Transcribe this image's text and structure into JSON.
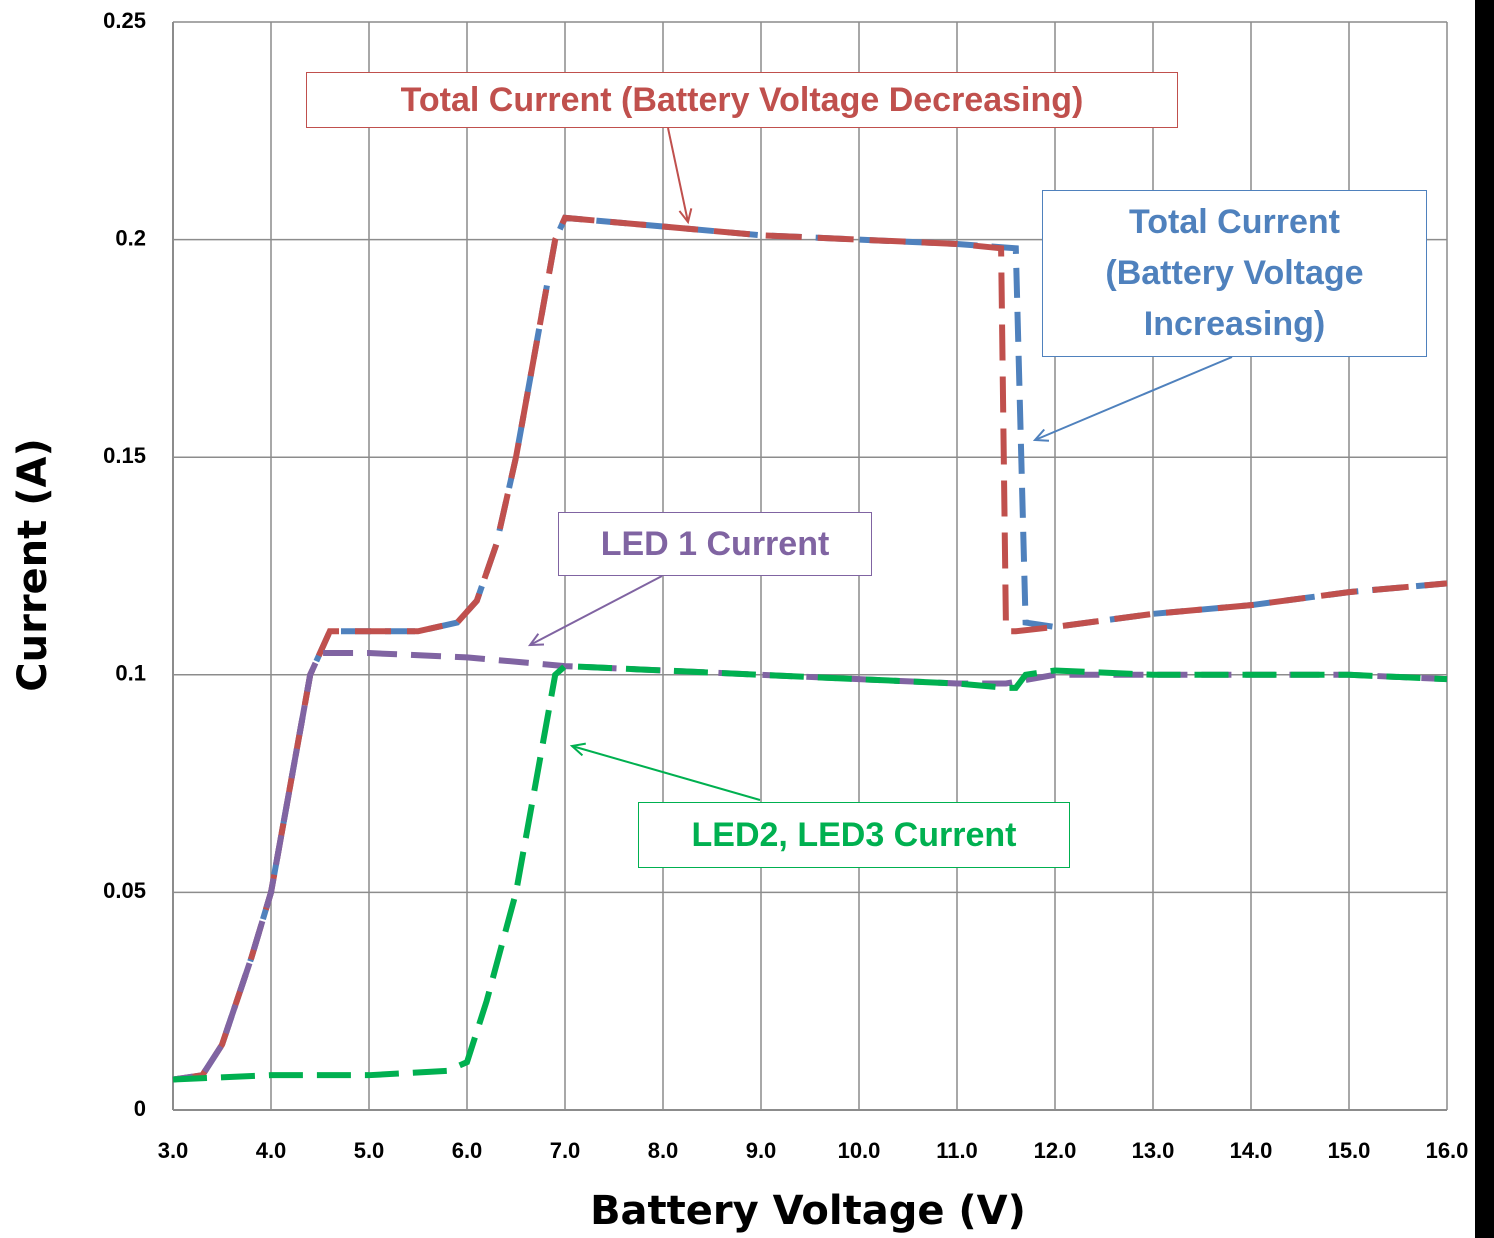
{
  "chart_data": {
    "type": "line",
    "xlabel": "Battery Voltage (V)",
    "ylabel": "Current (A)",
    "xlim": [
      3,
      16
    ],
    "ylim": [
      0,
      0.25
    ],
    "xticks": [
      {
        "value": 3,
        "label": "3.0"
      },
      {
        "value": 4,
        "label": "4.0"
      },
      {
        "value": 5,
        "label": "5.0"
      },
      {
        "value": 6,
        "label": "6.0"
      },
      {
        "value": 7,
        "label": "7.0"
      },
      {
        "value": 8,
        "label": "8.0"
      },
      {
        "value": 9,
        "label": "9.0"
      },
      {
        "value": 10,
        "label": "10.0"
      },
      {
        "value": 11,
        "label": "11.0"
      },
      {
        "value": 12,
        "label": "12.0"
      },
      {
        "value": 13,
        "label": "13.0"
      },
      {
        "value": 14,
        "label": "14.0"
      },
      {
        "value": 15,
        "label": "15.0"
      },
      {
        "value": 16,
        "label": "16.0"
      }
    ],
    "yticks": [
      0,
      0.05,
      0.1,
      0.15,
      0.2,
      0.25
    ],
    "grid": true,
    "series": [
      {
        "name": "Total Current (Battery Voltage Increasing)",
        "color": "#4f81bd",
        "x": [
          3,
          3.3,
          3.5,
          3.8,
          4.0,
          4.2,
          4.4,
          4.6,
          5.0,
          5.5,
          5.9,
          6.1,
          6.3,
          6.5,
          6.7,
          6.9,
          7.0,
          8,
          9,
          10,
          11,
          11.6,
          11.7,
          12,
          13,
          14,
          15,
          16
        ],
        "values": [
          0.007,
          0.008,
          0.015,
          0.035,
          0.05,
          0.075,
          0.1,
          0.11,
          0.11,
          0.11,
          0.112,
          0.117,
          0.13,
          0.15,
          0.175,
          0.2,
          0.205,
          0.203,
          0.201,
          0.2,
          0.199,
          0.198,
          0.112,
          0.111,
          0.114,
          0.116,
          0.119,
          0.121
        ]
      },
      {
        "name": "Total Current (Battery Voltage Decreasing)",
        "color": "#c0504d",
        "x": [
          3,
          3.3,
          3.5,
          3.8,
          4.0,
          4.2,
          4.4,
          4.6,
          5.0,
          5.5,
          5.9,
          6.1,
          6.3,
          6.5,
          6.7,
          6.9,
          7.0,
          8,
          9,
          10,
          11,
          11.45,
          11.5,
          11.6,
          12,
          13,
          14,
          15,
          16
        ],
        "values": [
          0.007,
          0.008,
          0.015,
          0.035,
          0.05,
          0.075,
          0.1,
          0.11,
          0.11,
          0.11,
          0.112,
          0.117,
          0.13,
          0.15,
          0.175,
          0.2,
          0.205,
          0.203,
          0.201,
          0.2,
          0.199,
          0.198,
          0.11,
          0.11,
          0.111,
          0.114,
          0.116,
          0.119,
          0.121
        ]
      },
      {
        "name": "LED 1 Current",
        "color": "#8064a2",
        "x": [
          3,
          3.3,
          3.5,
          3.8,
          4.0,
          4.2,
          4.4,
          4.5,
          5,
          6,
          7,
          8,
          9,
          10,
          11,
          11.5,
          12,
          13,
          14,
          15,
          16
        ],
        "values": [
          0.007,
          0.008,
          0.015,
          0.035,
          0.05,
          0.075,
          0.1,
          0.105,
          0.105,
          0.104,
          0.102,
          0.101,
          0.1,
          0.099,
          0.098,
          0.098,
          0.1,
          0.1,
          0.1,
          0.1,
          0.099
        ]
      },
      {
        "name": "LED2, LED3 Current",
        "color": "#00b050",
        "x": [
          3,
          4,
          5,
          5.8,
          6,
          6.2,
          6.5,
          6.7,
          6.9,
          7,
          8,
          9,
          10,
          11,
          11.5,
          11.6,
          11.7,
          12,
          13,
          14,
          15,
          16
        ],
        "values": [
          0.007,
          0.008,
          0.008,
          0.009,
          0.011,
          0.025,
          0.05,
          0.075,
          0.1,
          0.102,
          0.101,
          0.1,
          0.099,
          0.098,
          0.097,
          0.097,
          0.1,
          0.101,
          0.1,
          0.1,
          0.1,
          0.099
        ]
      }
    ]
  }
}
